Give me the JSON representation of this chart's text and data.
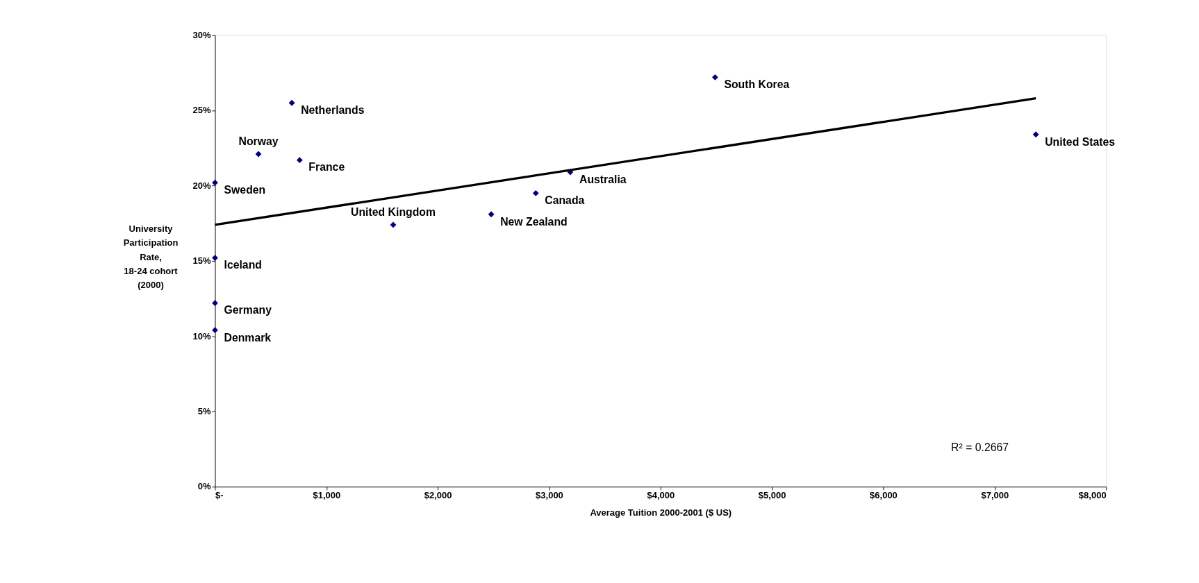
{
  "chart_data": {
    "type": "scatter",
    "xlabel": "Average Tuition 2000-2001 ($ US)",
    "ylabel": "University\nParticipation\nRate,\n18-24 cohort\n(2000)",
    "xlim": [
      0,
      8000
    ],
    "ylim": [
      0,
      30
    ],
    "xticks": [
      {
        "value": 0,
        "label": "$-"
      },
      {
        "value": 1000,
        "label": "$1,000"
      },
      {
        "value": 2000,
        "label": "$2,000"
      },
      {
        "value": 3000,
        "label": "$3,000"
      },
      {
        "value": 4000,
        "label": "$4,000"
      },
      {
        "value": 5000,
        "label": "$5,000"
      },
      {
        "value": 6000,
        "label": "$6,000"
      },
      {
        "value": 7000,
        "label": "$7,000"
      },
      {
        "value": 8000,
        "label": "$8,000"
      }
    ],
    "yticks": [
      {
        "value": 0,
        "label": "0%"
      },
      {
        "value": 5,
        "label": "5%"
      },
      {
        "value": 10,
        "label": "10%"
      },
      {
        "value": 15,
        "label": "15%"
      },
      {
        "value": 20,
        "label": "20%"
      },
      {
        "value": 25,
        "label": "25%"
      },
      {
        "value": 30,
        "label": "30%"
      }
    ],
    "grid": false,
    "series": [
      {
        "marker": "diamond",
        "color": "#000080",
        "x": [
          690,
          390,
          760,
          0,
          0,
          0,
          0,
          1600,
          2480,
          2880,
          3190,
          4490,
          7370
        ],
        "values": [
          25.5,
          22.1,
          21.7,
          20.2,
          15.2,
          12.2,
          10.4,
          17.4,
          18.1,
          19.5,
          20.9,
          27.2,
          23.4
        ]
      },
      {
        "type": "line",
        "color": "#000000",
        "x": [
          0,
          7370
        ],
        "values": [
          17.4,
          25.8
        ]
      }
    ],
    "annotations": [
      {
        "text": "Netherlands",
        "x": 690,
        "y": 25.5
      },
      {
        "text": "Norway",
        "x": 390,
        "y": 22.1
      },
      {
        "text": "France",
        "x": 760,
        "y": 21.7
      },
      {
        "text": "Sweden",
        "x": 0,
        "y": 20.2
      },
      {
        "text": "Iceland",
        "x": 0,
        "y": 15.2
      },
      {
        "text": "Germany",
        "x": 0,
        "y": 12.2
      },
      {
        "text": "Denmark",
        "x": 0,
        "y": 10.4
      },
      {
        "text": "United Kingdom",
        "x": 1600,
        "y": 17.4
      },
      {
        "text": "New Zealand",
        "x": 2480,
        "y": 18.1
      },
      {
        "text": "Canada",
        "x": 2880,
        "y": 19.5
      },
      {
        "text": "Australia",
        "x": 3190,
        "y": 20.9
      },
      {
        "text": "South Korea",
        "x": 4490,
        "y": 27.2
      },
      {
        "text": "United States",
        "x": 7370,
        "y": 23.4
      },
      "R² = 0.2667"
    ]
  }
}
